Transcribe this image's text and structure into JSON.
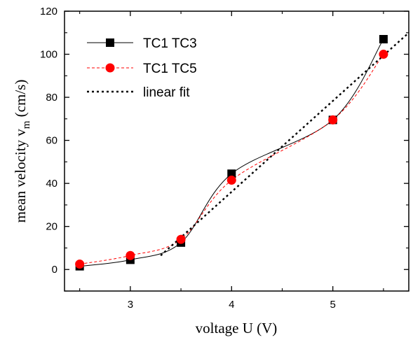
{
  "chart_data": {
    "type": "scatter",
    "xlabel": "voltage U (V)",
    "ylabel_main": "mean velocity v",
    "ylabel_sub": "m",
    "ylabel_unit": " (cm/s)",
    "xlim": [
      2.35,
      5.75
    ],
    "ylim": [
      -10,
      120
    ],
    "xticks": [
      3,
      4,
      5
    ],
    "yticks": [
      0,
      20,
      40,
      60,
      80,
      100,
      120
    ],
    "grid": false,
    "legend_position": "top-left",
    "series": [
      {
        "name": "TC1 TC3",
        "marker": "square",
        "color": "#000000",
        "line": "solid",
        "x": [
          2.5,
          3.0,
          3.5,
          4.0,
          5.0,
          5.5
        ],
        "y": [
          1.5,
          4.5,
          12.5,
          44.5,
          69.5,
          107
        ]
      },
      {
        "name": "TC1 TC5",
        "marker": "circle",
        "color": "#ff0000",
        "line": "dashed",
        "x": [
          2.5,
          3.0,
          3.5,
          4.0,
          5.0,
          5.5
        ],
        "y": [
          2.5,
          6.5,
          14.0,
          41.5,
          69.5,
          100
        ]
      },
      {
        "name": "linear fit",
        "marker": "none",
        "color": "#000000",
        "line": "dotted",
        "x": [
          3.3,
          5.75
        ],
        "y": [
          6.5,
          110
        ]
      }
    ]
  }
}
